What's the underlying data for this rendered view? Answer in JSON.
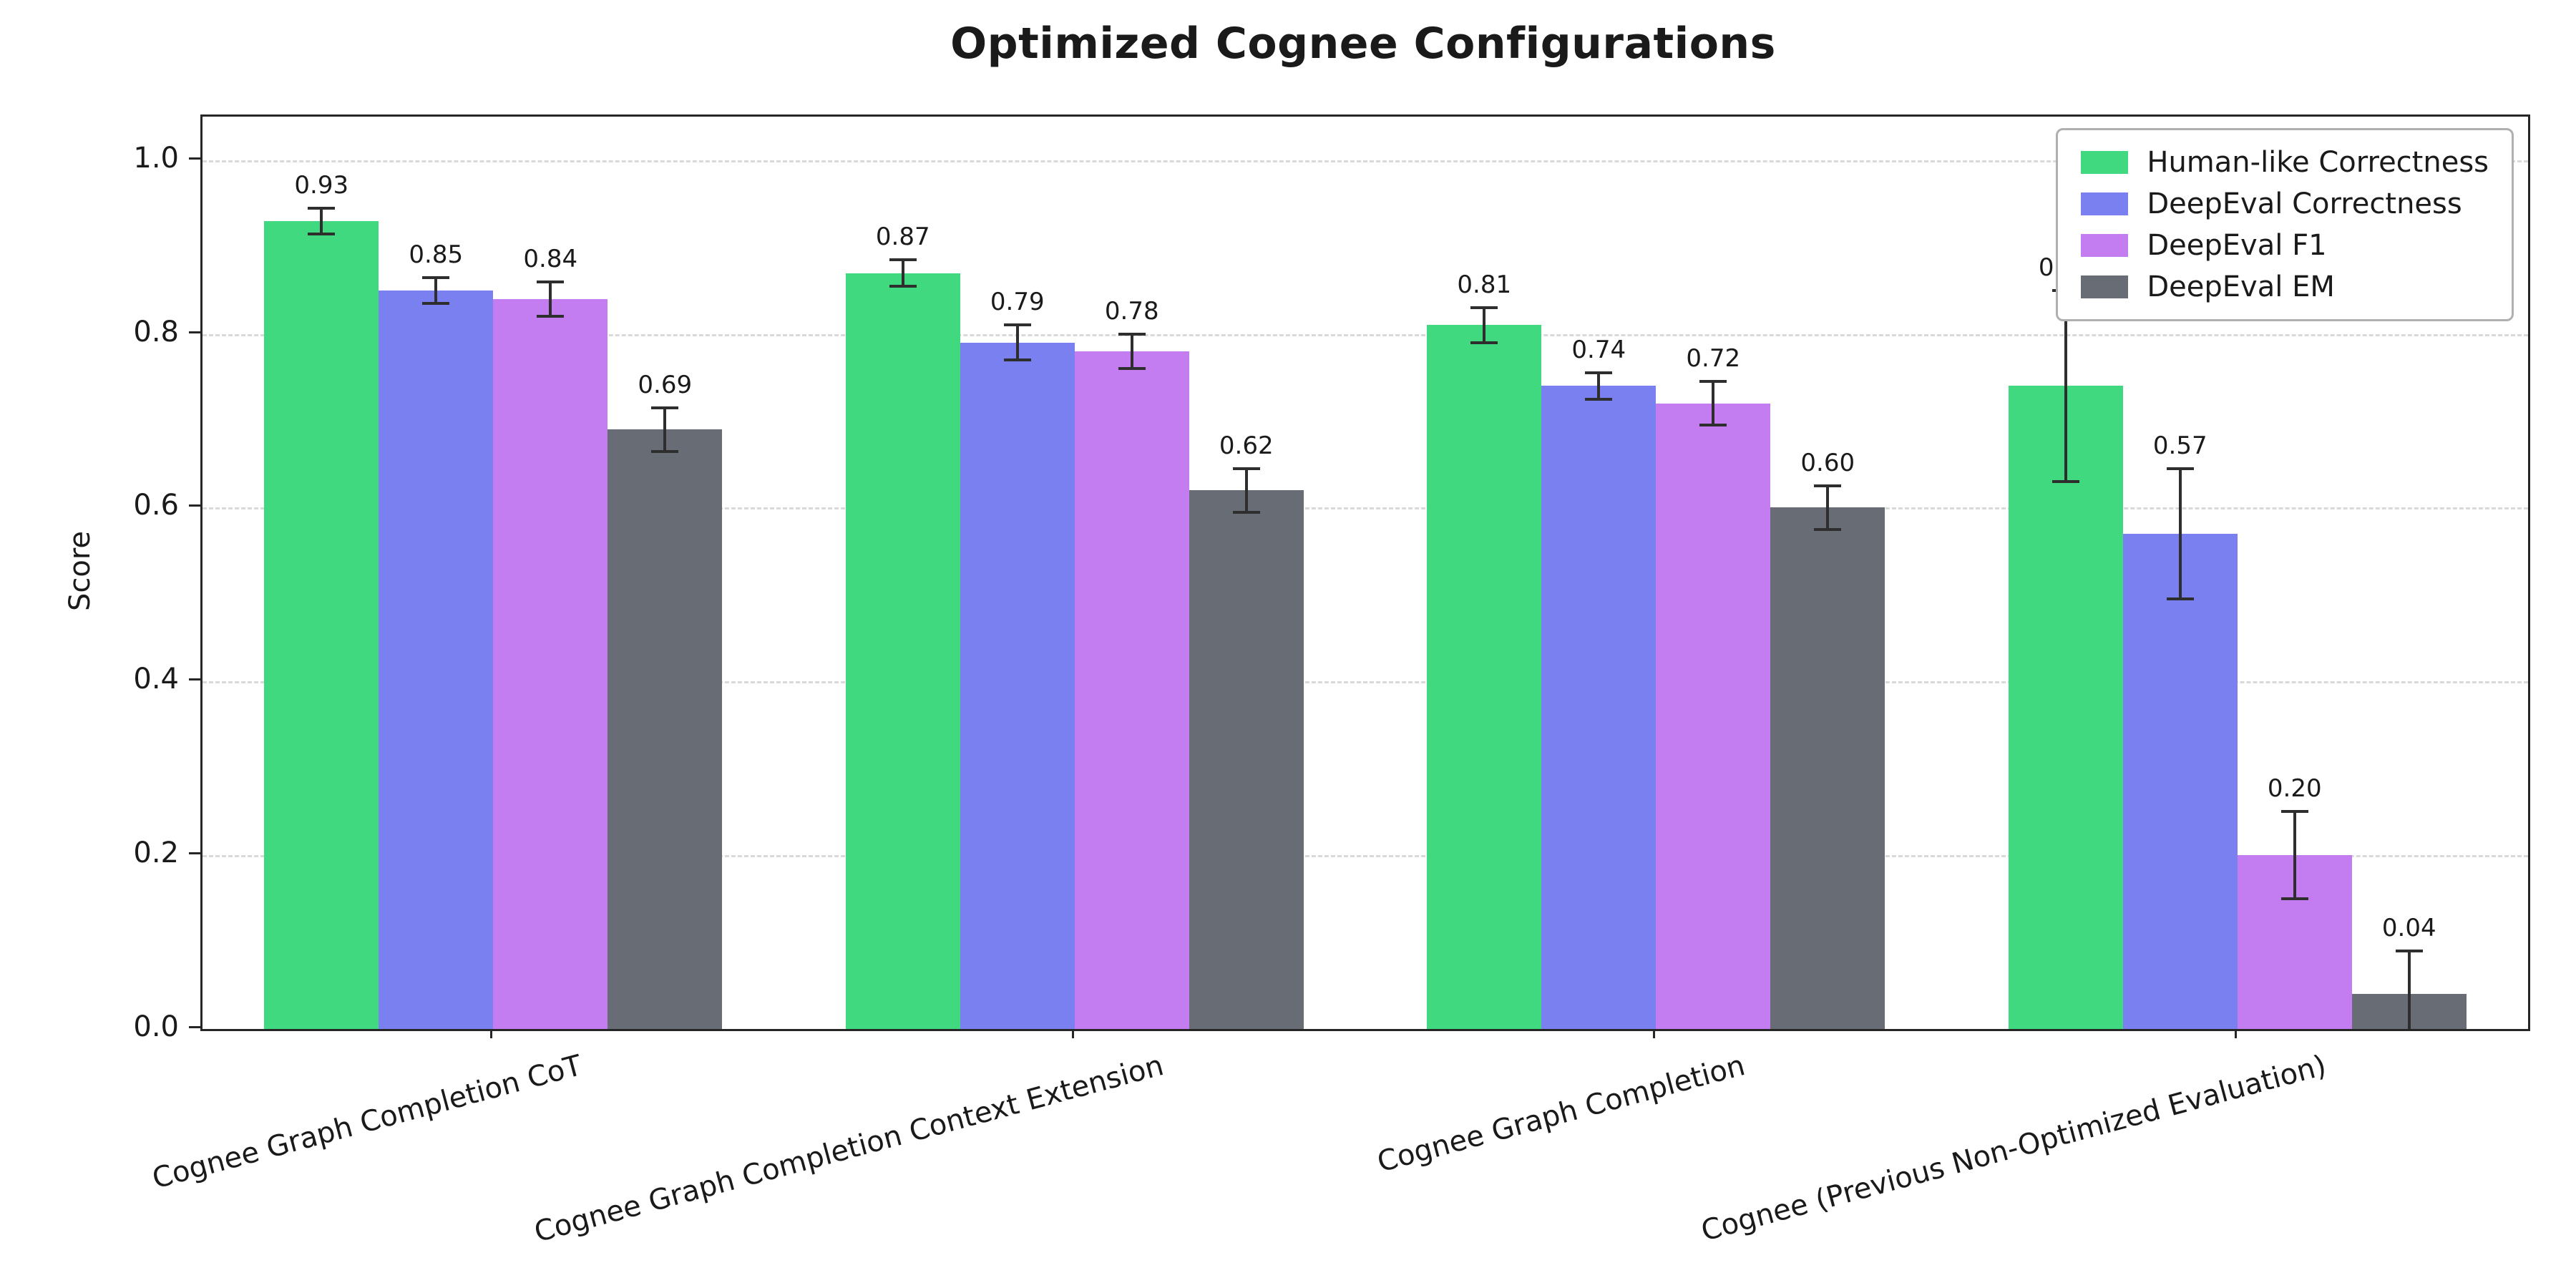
{
  "chart_data": {
    "type": "bar",
    "title": "Optimized Cognee Configurations",
    "xlabel": "",
    "ylabel": "Score",
    "ylim": [
      0,
      1.05
    ],
    "yticks": [
      0.0,
      0.2,
      0.4,
      0.6,
      0.8,
      1.0
    ],
    "grid": "horizontal-dashed",
    "legend_position": "upper-right",
    "error_bars": true,
    "error_bar_color": "#2e2e2e",
    "categories": [
      "Cognee Graph Completion CoT",
      "Cognee Graph Completion Context Extension",
      "Cognee Graph Completion",
      "Cognee (Previous Non-Optimized Evaluation)"
    ],
    "series": [
      {
        "name": "Human-like Correctness",
        "color": "#41d980",
        "values": [
          0.93,
          0.87,
          0.81,
          0.74
        ],
        "errors": [
          0.015,
          0.015,
          0.02,
          0.11
        ]
      },
      {
        "name": "DeepEval Correctness",
        "color": "#7b80f0",
        "values": [
          0.85,
          0.79,
          0.74,
          0.57
        ],
        "errors": [
          0.015,
          0.02,
          0.015,
          0.075
        ]
      },
      {
        "name": "DeepEval F1",
        "color": "#c47df0",
        "values": [
          0.84,
          0.78,
          0.72,
          0.2
        ],
        "errors": [
          0.02,
          0.02,
          0.025,
          0.05
        ]
      },
      {
        "name": "DeepEval EM",
        "color": "#686c75",
        "values": [
          0.69,
          0.62,
          0.6,
          0.04
        ],
        "errors": [
          0.025,
          0.025,
          0.025,
          0.05
        ]
      }
    ]
  }
}
